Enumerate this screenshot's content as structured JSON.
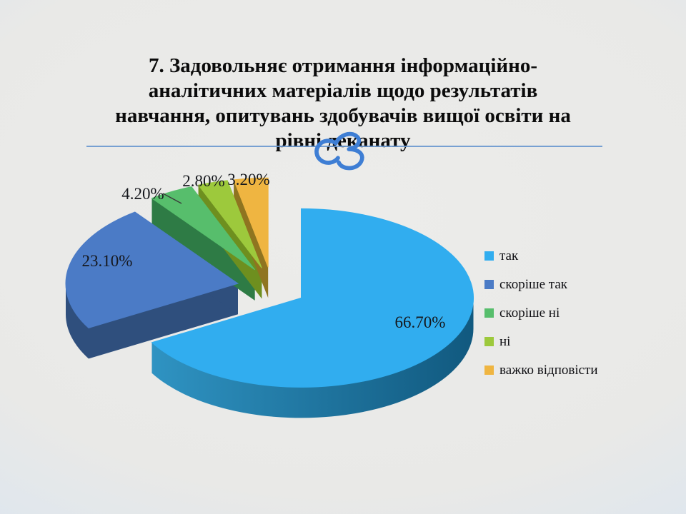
{
  "slide": {
    "title": "7. Задовольняє отримання інформаційно-аналітичних матеріалів щодо результатів навчання, опитувань здобувачів вищої освіти на рівні деканату",
    "title_lines": [
      "7. Задовольняє отримання інформаційно-",
      "аналітичних матеріалів щодо результатів",
      "навчання, опитувань здобувачів вищої освіти на",
      "рівні деканату"
    ],
    "divider_color": "#6A98CF",
    "ornament_color": "#3E7ED4",
    "background_center_color": "#ECECEA",
    "background_edge_color": "#C7DAEC"
  },
  "chart_data": {
    "type": "pie",
    "style": "3d-exploded",
    "start_angle_deg": 0,
    "direction": "clockwise",
    "labels": [
      "так",
      "скоріше так",
      "скоріше ні",
      "ні",
      "важко відповісти"
    ],
    "values": [
      66.7,
      23.1,
      4.2,
      2.8,
      3.2
    ],
    "value_labels": [
      "66.70%",
      "23.10%",
      "4.20%",
      "2.80%",
      "3.20%"
    ],
    "slice_colors": [
      "#31ADEF",
      "#4B7BC6",
      "#57BE6C",
      "#9DC93C",
      "#EFB541"
    ],
    "slice_side_colors": [
      "#15628E",
      "#2F4F7D",
      "#2E7B45",
      "#6E8F1F",
      "#8F7420"
    ],
    "legend": {
      "position": "right"
    }
  }
}
